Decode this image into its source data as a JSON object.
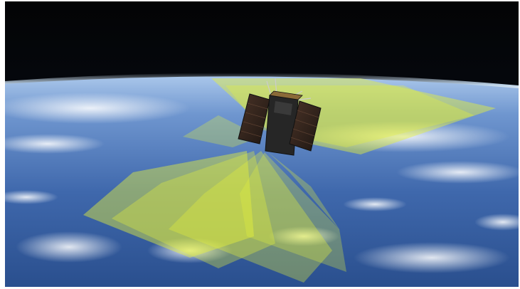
{
  "image": {
    "subject": "satellite-over-earth",
    "colors": {
      "space": "#050608",
      "ocean_deep": "#1f3f78",
      "ocean_light": "#5d86c8",
      "atmosphere": "#bfe3ff",
      "coverage": "#e6f23a",
      "satellite_body": "#2a2a2a",
      "solar_panel": "#3a2a22"
    }
  }
}
